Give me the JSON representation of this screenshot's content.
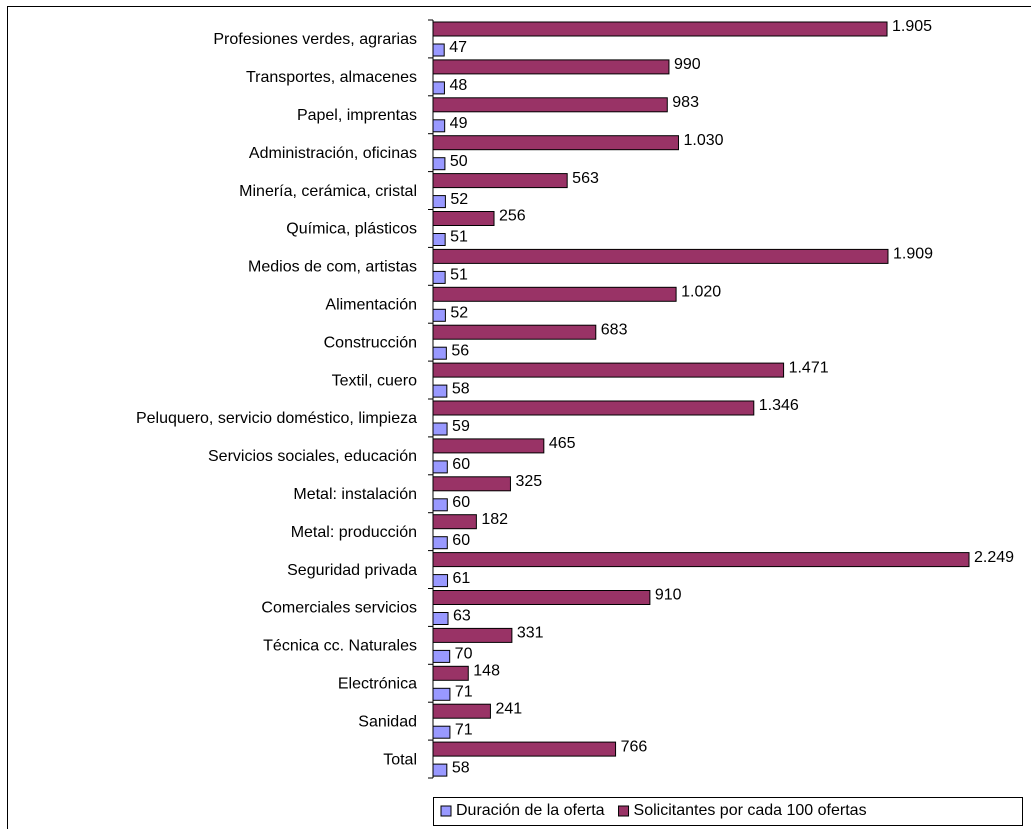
{
  "chart_data": {
    "type": "hbar",
    "categories": [
      "Profesiones verdes, agrarias",
      "Transportes, almacenes",
      "Papel, imprentas",
      "Administración, oficinas",
      "Minería, cerámica, cristal",
      "Química, plásticos",
      "Medios de com, artistas",
      "Alimentación",
      "Construcción",
      "Textil, cuero",
      "Peluquero, servicio doméstico, limpieza",
      "Servicios sociales, educación",
      "Metal: instalación",
      "Metal: producción",
      "Seguridad privada",
      "Comerciales servicios",
      "Técnica cc. Naturales",
      "Electrónica",
      "Sanidad",
      "Total"
    ],
    "series": [
      {
        "name": "Duración de la oferta",
        "color": "#9999ff",
        "values": [
          47,
          48,
          49,
          50,
          52,
          51,
          51,
          52,
          56,
          58,
          59,
          60,
          60,
          60,
          61,
          63,
          70,
          71,
          71,
          58
        ]
      },
      {
        "name": "Solicitantes por cada 100 ofertas",
        "color": "#993366",
        "values": [
          1905,
          990,
          983,
          1030,
          563,
          256,
          1909,
          1020,
          683,
          1471,
          1346,
          465,
          325,
          182,
          2249,
          910,
          331,
          148,
          241,
          766
        ],
        "value_labels": [
          "1.905",
          "990",
          "983",
          "1.030",
          "563",
          "256",
          "1.909",
          "1.020",
          "683",
          "1.471",
          "1.346",
          "465",
          "325",
          "182",
          "2.249",
          "910",
          "331",
          "148",
          "241",
          "766"
        ]
      }
    ],
    "xlim": [
      0,
      2400
    ],
    "legend": "bottom"
  }
}
